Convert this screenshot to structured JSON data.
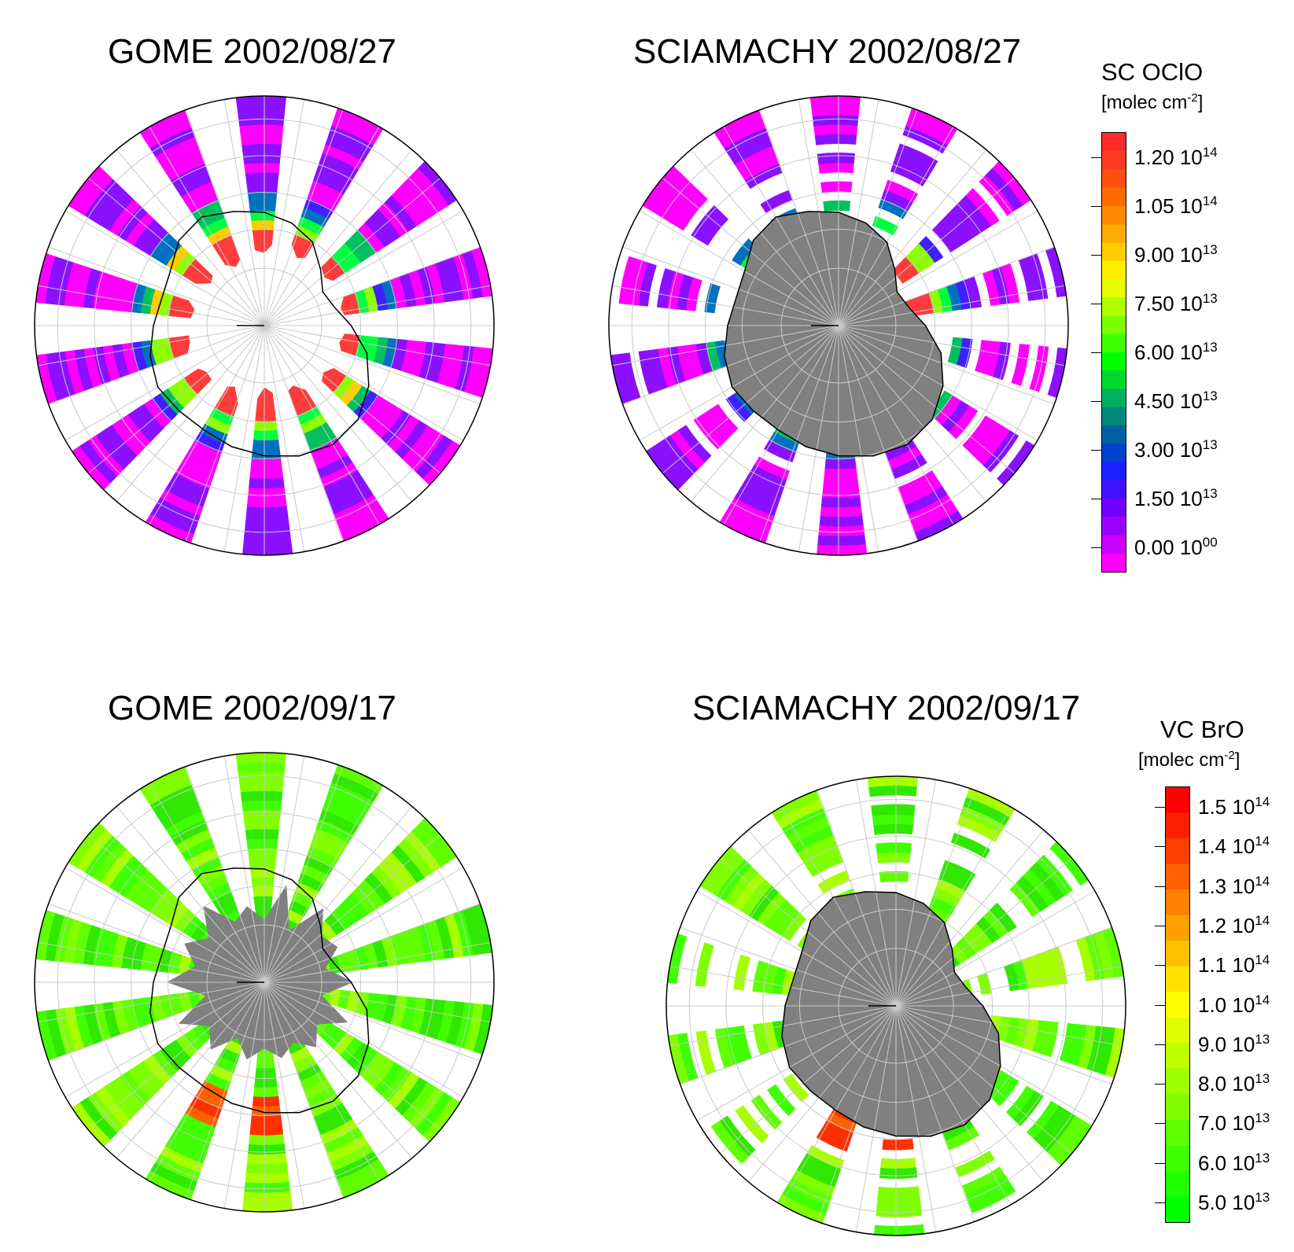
{
  "panels": [
    {
      "title": "GOME 2002/08/27",
      "product": "ocio",
      "scheme": "ocio-full"
    },
    {
      "title": "SCIAMACHY 2002/08/27",
      "product": "ocio",
      "scheme": "ocio-scia"
    },
    {
      "title": "GOME 2002/09/17",
      "product": "bro",
      "scheme": "bro-full"
    },
    {
      "title": "SCIAMACHY 2002/09/17",
      "product": "bro",
      "scheme": "bro-scia"
    }
  ],
  "legends": {
    "ocio": {
      "title": "SC OClO",
      "unit_prefix": "[molec cm",
      "unit_exp": "-2",
      "unit_suffix": "]",
      "ticks": [
        {
          "mantissa": "1.20 10",
          "exp": "14"
        },
        {
          "mantissa": "1.05 10",
          "exp": "14"
        },
        {
          "mantissa": "9.00 10",
          "exp": "13"
        },
        {
          "mantissa": "7.50 10",
          "exp": "13"
        },
        {
          "mantissa": "6.00 10",
          "exp": "13"
        },
        {
          "mantissa": "4.50 10",
          "exp": "13"
        },
        {
          "mantissa": "3.00 10",
          "exp": "13"
        },
        {
          "mantissa": "1.50 10",
          "exp": "13"
        },
        {
          "mantissa": "0.00 10",
          "exp": "00"
        }
      ],
      "colors": [
        "#ff2a2a",
        "#ff3a20",
        "#ff5010",
        "#ff6a00",
        "#ff8a00",
        "#ffaa00",
        "#ffcc00",
        "#ffee00",
        "#e6ff00",
        "#b0ff00",
        "#7cff00",
        "#40ff00",
        "#00ff00",
        "#00d830",
        "#00b060",
        "#008878",
        "#0060a0",
        "#0040d0",
        "#1a20ff",
        "#4010ff",
        "#7000ff",
        "#9a00ff",
        "#c800ff",
        "#ff00ff"
      ]
    },
    "bro": {
      "title": "VC BrO",
      "unit_prefix": "[molec cm",
      "unit_exp": "-2",
      "unit_suffix": "]",
      "ticks": [
        {
          "mantissa": "1.5 10",
          "exp": "14"
        },
        {
          "mantissa": "1.4 10",
          "exp": "14"
        },
        {
          "mantissa": "1.3 10",
          "exp": "14"
        },
        {
          "mantissa": "1.2 10",
          "exp": "14"
        },
        {
          "mantissa": "1.1 10",
          "exp": "14"
        },
        {
          "mantissa": "1.0 10",
          "exp": "14"
        },
        {
          "mantissa": "9.0 10",
          "exp": "13"
        },
        {
          "mantissa": "8.0 10",
          "exp": "13"
        },
        {
          "mantissa": "7.0 10",
          "exp": "13"
        },
        {
          "mantissa": "6.0 10",
          "exp": "13"
        },
        {
          "mantissa": "5.0 10",
          "exp": "13"
        }
      ],
      "colors": [
        "#ff0000",
        "#ff2000",
        "#ff4000",
        "#ff6000",
        "#ff8000",
        "#ffa000",
        "#ffc000",
        "#ffe000",
        "#ffff00",
        "#e0ff00",
        "#c0ff00",
        "#a0ff00",
        "#80ff00",
        "#60ff00",
        "#40ff00",
        "#20ff00",
        "#00ff00"
      ]
    }
  },
  "land_color": "#808080",
  "grid_color": "#c8c8c8"
}
